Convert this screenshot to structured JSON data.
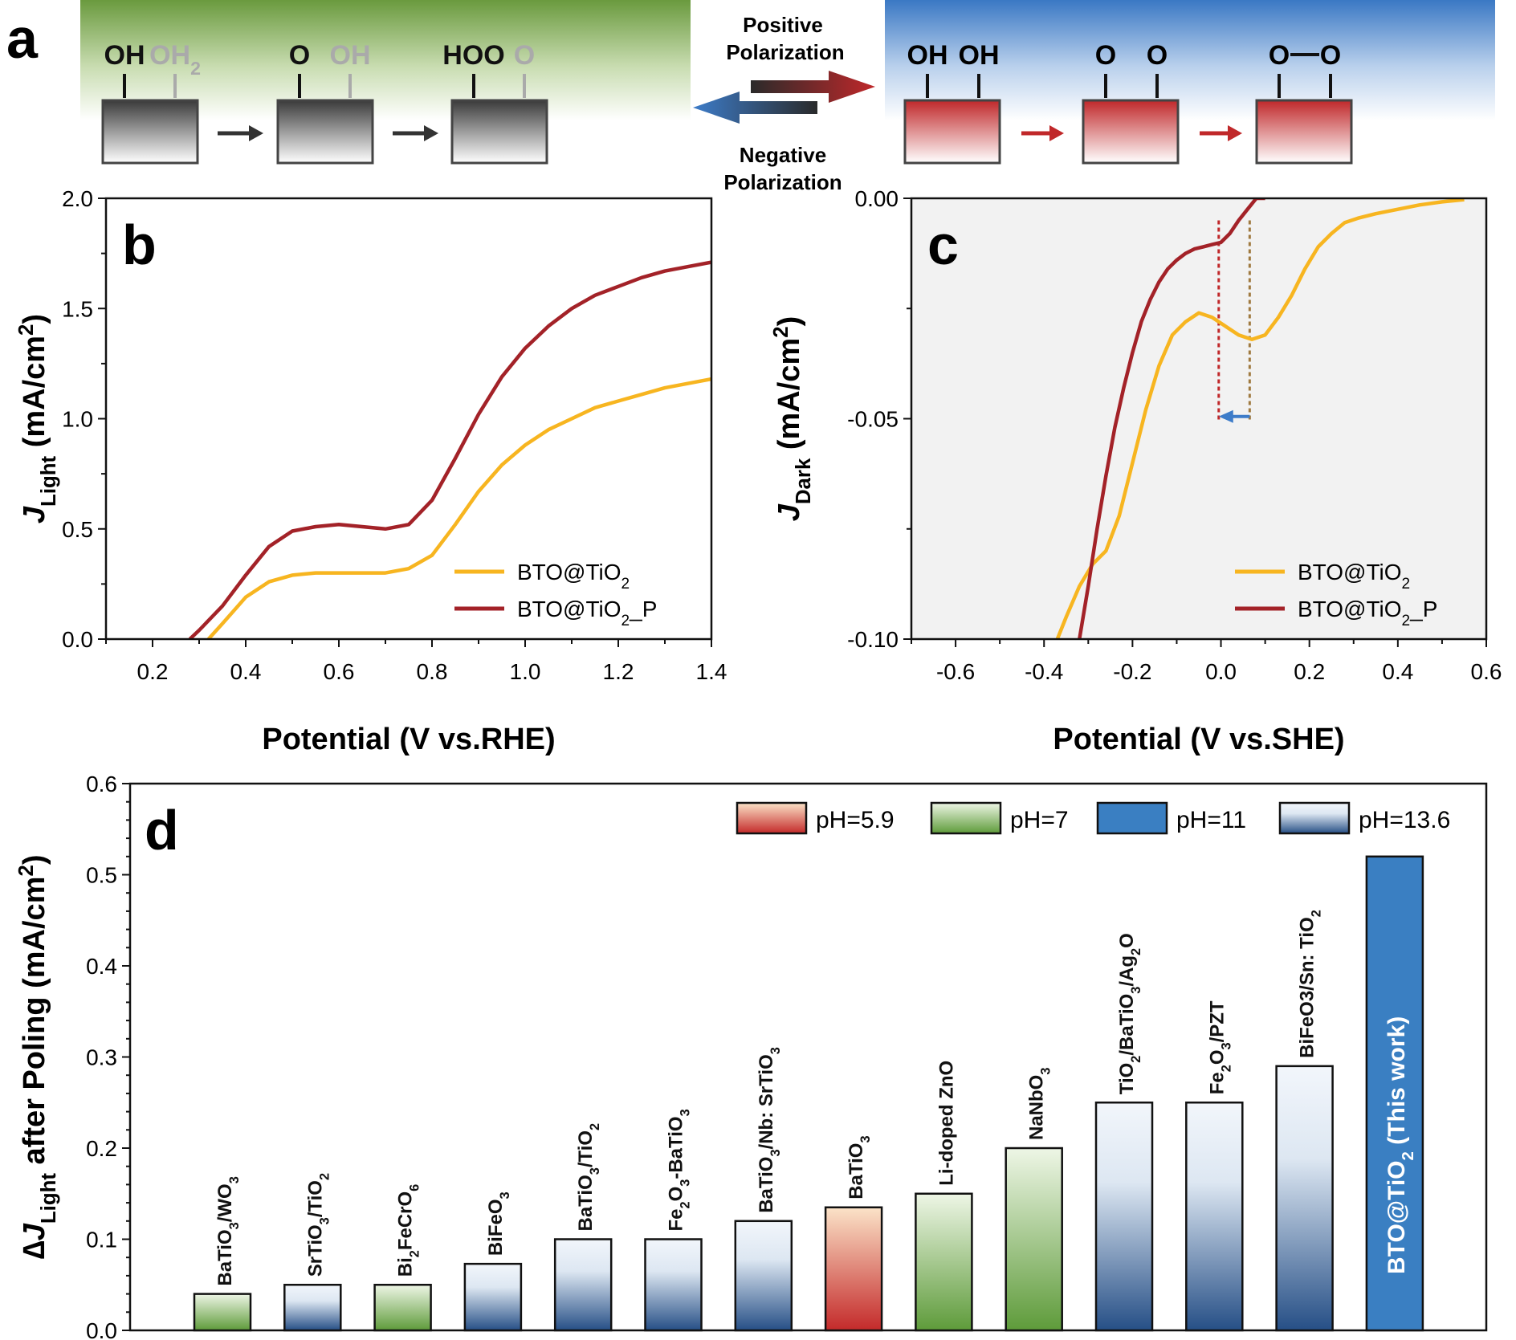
{
  "panel_a": {
    "letter": "a",
    "left_steps": [
      {
        "main": "OH",
        "ghost": "OH",
        "ghost_sub": "2"
      },
      {
        "main": "O",
        "ghost": "OH",
        "ghost_sub": ""
      },
      {
        "main": "HOO",
        "ghost": "O",
        "ghost_sub": ""
      }
    ],
    "right_steps": [
      {
        "a": "OH",
        "b": "OH",
        "bond": false
      },
      {
        "a": "O",
        "b": "O",
        "bond": false
      },
      {
        "a": "O",
        "b": "O",
        "bond": true
      }
    ],
    "positive_label": [
      "Positive",
      "Polarization"
    ],
    "negative_label": [
      "Negative",
      "Polarization"
    ],
    "colors": {
      "green": "#7aab4f",
      "blue": "#3d7cc9",
      "red": "#c0282a",
      "dark": "#333333"
    }
  },
  "chart_data": [
    {
      "panel": "b",
      "type": "line",
      "xlabel": "Potential (V vs.RHE)",
      "ylabel": {
        "J": "J",
        "sub": "Light",
        "rest": " (mA/cm",
        "sup": "2",
        "end": ")"
      },
      "xlim": [
        0.1,
        1.4
      ],
      "ylim": [
        0.0,
        2.0
      ],
      "xticks": [
        "0.2",
        "0.4",
        "0.6",
        "0.8",
        "1.0",
        "1.2",
        "1.4"
      ],
      "yticks": [
        "0.0",
        "0.5",
        "1.0",
        "1.5",
        "2.0"
      ],
      "legend_position": "bottom-right",
      "series": [
        {
          "name": "BTO@TiO",
          "name_sub": "2",
          "color": "#f7b520",
          "x": [
            0.32,
            0.35,
            0.4,
            0.45,
            0.5,
            0.55,
            0.6,
            0.65,
            0.7,
            0.75,
            0.8,
            0.85,
            0.9,
            0.95,
            1.0,
            1.05,
            1.1,
            1.15,
            1.2,
            1.25,
            1.3,
            1.35,
            1.4
          ],
          "y": [
            0.0,
            0.07,
            0.19,
            0.26,
            0.29,
            0.3,
            0.3,
            0.3,
            0.3,
            0.32,
            0.38,
            0.52,
            0.67,
            0.79,
            0.88,
            0.95,
            1.0,
            1.05,
            1.08,
            1.11,
            1.14,
            1.16,
            1.18
          ]
        },
        {
          "name": "BTO@TiO",
          "name_sub": "2_P",
          "color": "#a32228",
          "x": [
            0.28,
            0.3,
            0.35,
            0.4,
            0.45,
            0.5,
            0.55,
            0.6,
            0.65,
            0.7,
            0.75,
            0.8,
            0.85,
            0.9,
            0.95,
            1.0,
            1.05,
            1.1,
            1.15,
            1.2,
            1.25,
            1.3,
            1.35,
            1.4
          ],
          "y": [
            0.0,
            0.04,
            0.15,
            0.29,
            0.42,
            0.49,
            0.51,
            0.52,
            0.51,
            0.5,
            0.52,
            0.63,
            0.82,
            1.02,
            1.19,
            1.32,
            1.42,
            1.5,
            1.56,
            1.6,
            1.64,
            1.67,
            1.69,
            1.71
          ]
        }
      ]
    },
    {
      "panel": "c",
      "type": "line",
      "xlabel": "Potential (V vs.SHE)",
      "ylabel": {
        "J": "J",
        "sub": "Dark",
        "rest": " (mA/cm",
        "sup": "2",
        "end": ")"
      },
      "xlim": [
        -0.7,
        0.6
      ],
      "ylim": [
        -0.1,
        0.0
      ],
      "xticks": [
        "-0.6",
        "-0.4",
        "-0.2",
        "0.0",
        "0.2",
        "0.4",
        "0.6"
      ],
      "yticks": [
        "-0.10",
        "-0.05",
        "0.00"
      ],
      "grid": false,
      "background": "#f2f2f2",
      "legend_position": "bottom-right",
      "series": [
        {
          "name": "BTO@TiO",
          "name_sub": "2",
          "color": "#f7b520",
          "x": [
            -0.37,
            -0.35,
            -0.32,
            -0.29,
            -0.26,
            -0.23,
            -0.2,
            -0.17,
            -0.14,
            -0.11,
            -0.08,
            -0.05,
            -0.02,
            0.01,
            0.04,
            0.07,
            0.1,
            0.13,
            0.16,
            0.19,
            0.22,
            0.25,
            0.28,
            0.31,
            0.35,
            0.4,
            0.45,
            0.5,
            0.55
          ],
          "y": [
            -0.1,
            -0.095,
            -0.088,
            -0.083,
            -0.08,
            -0.072,
            -0.06,
            -0.048,
            -0.038,
            -0.031,
            -0.028,
            -0.026,
            -0.027,
            -0.029,
            -0.031,
            -0.032,
            -0.031,
            -0.027,
            -0.022,
            -0.016,
            -0.011,
            -0.008,
            -0.0055,
            -0.0045,
            -0.0035,
            -0.0025,
            -0.0015,
            -0.0008,
            -0.0003
          ]
        },
        {
          "name": "BTO@TiO",
          "name_sub": "2_P",
          "color": "#a32228",
          "x": [
            -0.32,
            -0.3,
            -0.28,
            -0.26,
            -0.24,
            -0.22,
            -0.2,
            -0.18,
            -0.16,
            -0.14,
            -0.12,
            -0.1,
            -0.08,
            -0.06,
            -0.04,
            -0.02,
            0.0,
            0.02,
            0.04,
            0.06,
            0.08,
            0.1
          ],
          "y": [
            -0.1,
            -0.088,
            -0.075,
            -0.063,
            -0.052,
            -0.043,
            -0.035,
            -0.028,
            -0.023,
            -0.019,
            -0.016,
            -0.014,
            -0.0125,
            -0.0115,
            -0.011,
            -0.0105,
            -0.01,
            -0.008,
            -0.005,
            -0.0025,
            0.0,
            0.0
          ]
        }
      ],
      "markers": [
        {
          "x": -0.005,
          "color": "#c0282a"
        },
        {
          "x": 0.065,
          "color": "#a07a40"
        }
      ],
      "arrow": {
        "from": 0.065,
        "to": -0.005,
        "y": -0.0495,
        "color": "#3d7cc9"
      }
    },
    {
      "panel": "d",
      "type": "bar",
      "ylabel": {
        "pre": "∆",
        "J": "J",
        "sub": "Light",
        "rest": " after Poling (mA/cm",
        "sup": "2",
        "end": ")"
      },
      "ylim": [
        0.0,
        0.6
      ],
      "yticks": [
        "0.0",
        "0.1",
        "0.2",
        "0.3",
        "0.4",
        "0.5",
        "0.6"
      ],
      "legend_position": "top-right",
      "legend": [
        {
          "label": "pH=5.9",
          "group": "ph59"
        },
        {
          "label": "pH=7",
          "group": "ph7"
        },
        {
          "label": "pH=11",
          "group": "ph11"
        },
        {
          "label": "pH=13.6",
          "group": "ph136"
        }
      ],
      "bars": [
        {
          "value": 0.04,
          "group": "ph7",
          "label": [
            [
              "BaTiO",
              "n"
            ],
            [
              "3",
              "sub"
            ],
            [
              "/WO",
              "n"
            ],
            [
              "3",
              "sub"
            ]
          ]
        },
        {
          "value": 0.05,
          "group": "ph136",
          "label": [
            [
              "SrTiO",
              "n"
            ],
            [
              "3",
              "sub"
            ],
            [
              "/TiO",
              "n"
            ],
            [
              "2",
              "sub"
            ]
          ]
        },
        {
          "value": 0.05,
          "group": "ph7",
          "label": [
            [
              "Bi",
              "n"
            ],
            [
              "2",
              "sub"
            ],
            [
              "FeCrO",
              "n"
            ],
            [
              "6",
              "sub"
            ]
          ]
        },
        {
          "value": 0.073,
          "group": "ph136",
          "label": [
            [
              "BiFeO",
              "n"
            ],
            [
              "3",
              "sub"
            ]
          ]
        },
        {
          "value": 0.1,
          "group": "ph136",
          "label": [
            [
              "BaTiO",
              "n"
            ],
            [
              "3",
              "sub"
            ],
            [
              "/TiO",
              "n"
            ],
            [
              "2",
              "sub"
            ]
          ]
        },
        {
          "value": 0.1,
          "group": "ph136",
          "label": [
            [
              "Fe",
              "n"
            ],
            [
              "2",
              "sub"
            ],
            [
              "O",
              "n"
            ],
            [
              "3",
              "sub"
            ],
            [
              "-BaTiO",
              "n"
            ],
            [
              "3",
              "sub"
            ]
          ]
        },
        {
          "value": 0.12,
          "group": "ph136",
          "label": [
            [
              "BaTiO",
              "n"
            ],
            [
              "3",
              "sub"
            ],
            [
              "/Nb: SrTiO",
              "n"
            ],
            [
              "3",
              "sub"
            ]
          ]
        },
        {
          "value": 0.135,
          "group": "ph59",
          "label": [
            [
              "BaTiO",
              "n"
            ],
            [
              "3",
              "sub"
            ]
          ]
        },
        {
          "value": 0.15,
          "group": "ph7",
          "label": [
            [
              "Li-doped ZnO",
              "n"
            ]
          ]
        },
        {
          "value": 0.2,
          "group": "ph7",
          "label": [
            [
              "NaNbO",
              "n"
            ],
            [
              "3",
              "sub"
            ]
          ]
        },
        {
          "value": 0.25,
          "group": "ph136",
          "label": [
            [
              "TiO",
              "n"
            ],
            [
              "2",
              "sub"
            ],
            [
              "/BaTiO",
              "n"
            ],
            [
              "3",
              "sub"
            ],
            [
              "/Ag",
              "n"
            ],
            [
              "2",
              "sub"
            ],
            [
              "O",
              "n"
            ]
          ]
        },
        {
          "value": 0.25,
          "group": "ph136",
          "label": [
            [
              "Fe",
              "n"
            ],
            [
              "2",
              "sub"
            ],
            [
              "O",
              "n"
            ],
            [
              "3",
              "sub"
            ],
            [
              "/PZT",
              "n"
            ]
          ]
        },
        {
          "value": 0.29,
          "group": "ph136",
          "label": [
            [
              "BiFeO3/Sn: TiO",
              "n"
            ],
            [
              "2",
              "sub"
            ]
          ]
        },
        {
          "value": 0.52,
          "group": "ph11",
          "inside": true,
          "label": [
            [
              "BTO@TiO",
              "n"
            ],
            [
              "2",
              "sub"
            ],
            [
              " (This work)",
              "n"
            ]
          ]
        }
      ],
      "colors": {
        "ph59": "#c42a2a",
        "ph7": "#5e9b3a",
        "ph11": "#3a7fc2",
        "ph136": "#264f86"
      }
    }
  ],
  "panel_letters": {
    "b": "b",
    "c": "c",
    "d": "d"
  }
}
